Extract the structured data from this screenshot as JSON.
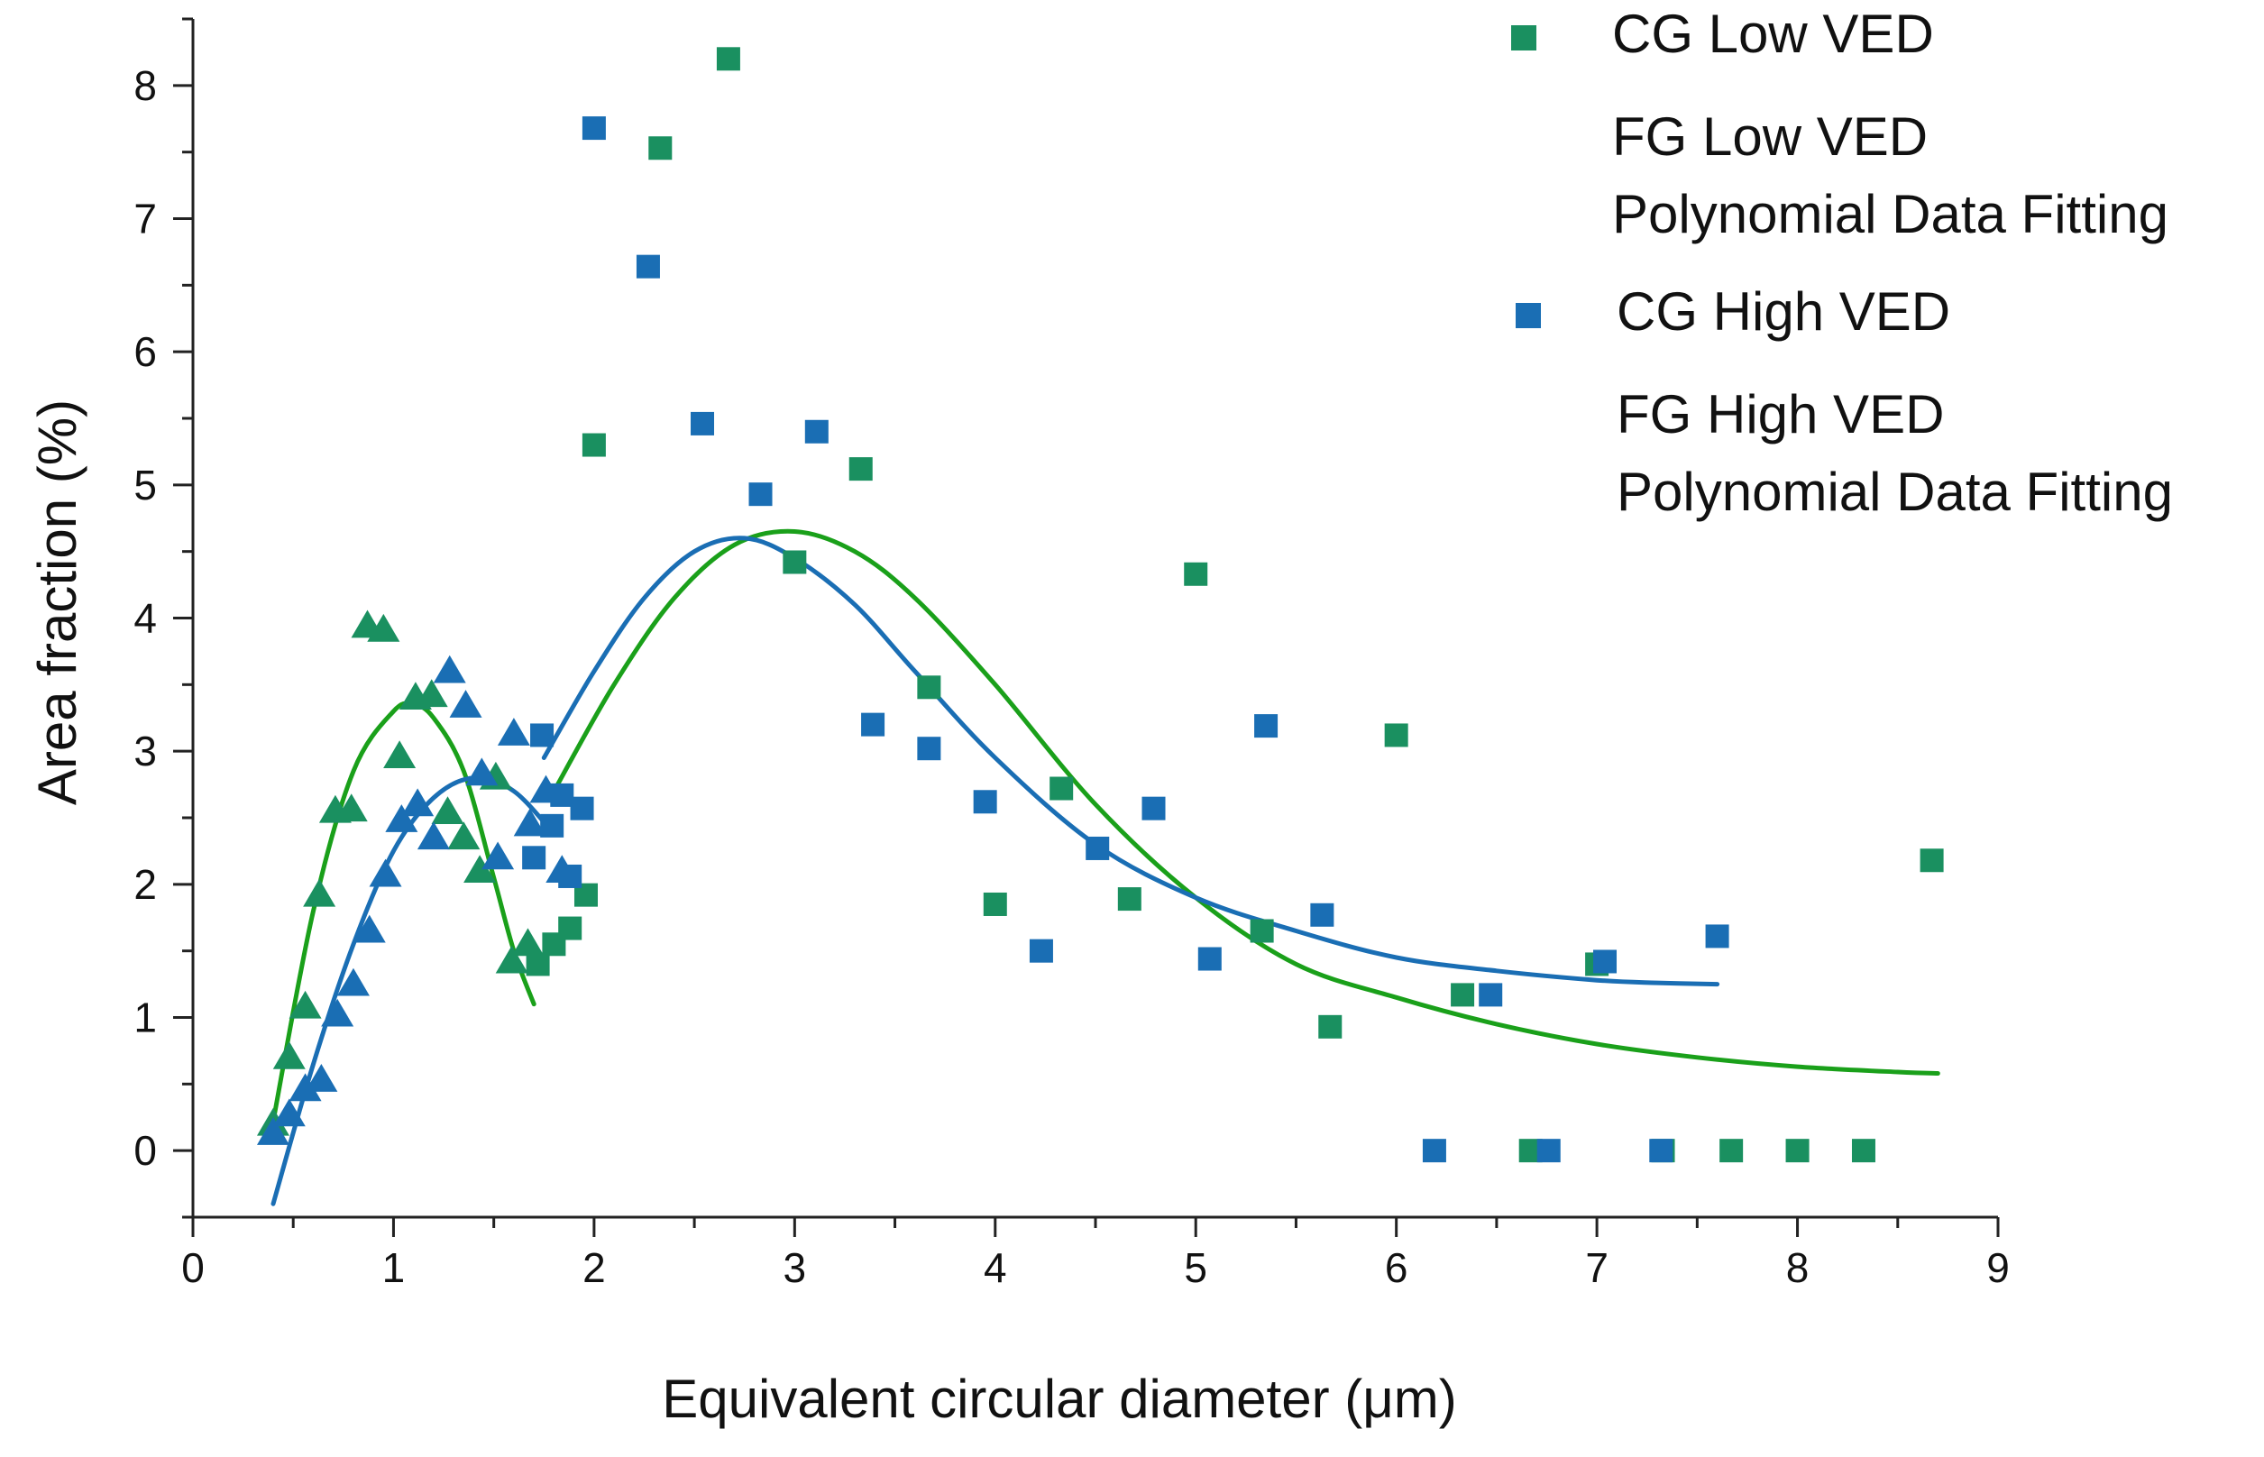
{
  "chart_data": {
    "type": "scatter",
    "xlabel": "Equivalent circular diameter (μm)",
    "ylabel": "Area fraction (%)",
    "xlim": [
      0,
      9
    ],
    "ylim": [
      -0.5,
      8.5
    ],
    "xticks": [
      "0",
      "1",
      "2",
      "3",
      "4",
      "5",
      "6",
      "7",
      "8",
      "9"
    ],
    "yticks": [
      "0",
      "1",
      "2",
      "3",
      "4",
      "5",
      "6",
      "7",
      "8"
    ],
    "legend": {
      "position": "top-right",
      "entries": [
        {
          "label": "CG Low VED",
          "marker": "square",
          "color": "#1a9060"
        },
        {
          "label": "FG Low VED",
          "marker": "none"
        },
        {
          "label": "Polynomial Data Fitting",
          "marker": "none"
        },
        {
          "label": "CG High VED",
          "marker": "square",
          "color": "#1a6eb4"
        },
        {
          "label": "FG High VED",
          "marker": "none"
        },
        {
          "label": "Polynomial Data Fitting",
          "marker": "none"
        }
      ]
    },
    "series": [
      {
        "name": "FG Low VED",
        "marker": "triangle",
        "color": "#1a9060",
        "x": [
          0.4,
          0.48,
          0.56,
          0.63,
          0.71,
          0.79,
          0.87,
          0.95,
          1.03,
          1.11,
          1.19,
          1.27,
          1.35,
          1.43,
          1.51,
          1.59,
          1.67
        ],
        "y": [
          0.2,
          0.7,
          1.08,
          1.92,
          2.55,
          2.56,
          3.94,
          3.91,
          2.96,
          3.4,
          3.42,
          2.54,
          2.35,
          2.1,
          2.8,
          1.42,
          1.55
        ]
      },
      {
        "name": "FG High VED",
        "marker": "triangle",
        "color": "#1a6eb4",
        "x": [
          0.4,
          0.48,
          0.56,
          0.64,
          0.72,
          0.8,
          0.88,
          0.96,
          1.04,
          1.12,
          1.2,
          1.28,
          1.36,
          1.44,
          1.52,
          1.6,
          1.68,
          1.76,
          1.84
        ],
        "y": [
          0.13,
          0.27,
          0.46,
          0.53,
          1.02,
          1.25,
          1.65,
          2.07,
          2.48,
          2.6,
          2.35,
          3.6,
          3.34,
          2.83,
          2.2,
          3.13,
          2.45,
          2.7,
          2.1
        ]
      },
      {
        "name": "CG Low VED",
        "marker": "square",
        "color": "#1a9060",
        "x": [
          1.72,
          1.8,
          1.88,
          1.96,
          2.0,
          2.33,
          2.67,
          3.0,
          3.33,
          3.67,
          4.0,
          4.33,
          4.67,
          5.0,
          5.33,
          5.67,
          6.0,
          6.33,
          6.67,
          7.0,
          7.33,
          7.67,
          8.0,
          8.33,
          8.67
        ],
        "y": [
          1.4,
          1.55,
          1.67,
          1.92,
          5.3,
          7.53,
          8.2,
          4.42,
          5.12,
          3.48,
          1.85,
          2.72,
          1.89,
          4.33,
          1.65,
          0.93,
          3.12,
          1.17,
          0.0,
          1.4,
          0.0,
          0.0,
          0.0,
          0.0,
          2.18
        ]
      },
      {
        "name": "CG High VED",
        "marker": "square",
        "color": "#1a6eb4",
        "x": [
          1.7,
          1.74,
          1.79,
          1.84,
          1.88,
          1.94,
          2.0,
          2.27,
          2.54,
          2.83,
          3.11,
          3.39,
          3.67,
          3.95,
          4.23,
          4.51,
          4.79,
          5.07,
          5.35,
          5.63,
          6.19,
          6.47,
          6.76,
          7.04,
          7.32,
          7.6
        ],
        "y": [
          2.2,
          3.12,
          2.44,
          2.67,
          2.06,
          2.57,
          7.68,
          6.64,
          5.46,
          4.93,
          5.4,
          3.2,
          3.02,
          2.62,
          1.5,
          2.27,
          2.57,
          1.44,
          3.19,
          1.77,
          0.0,
          1.17,
          0.0,
          1.42,
          0.0,
          1.61
        ]
      },
      {
        "name": "Polynomial Data Fitting (FG Low VED)",
        "type": "line",
        "color": "#1aa01a",
        "x": [
          0.4,
          0.6,
          0.8,
          1.0,
          1.1,
          1.2,
          1.35,
          1.5,
          1.6,
          1.7
        ],
        "y": [
          0.22,
          1.8,
          2.85,
          3.3,
          3.35,
          3.25,
          2.85,
          2.05,
          1.5,
          1.1
        ]
      },
      {
        "name": "Polynomial Data Fitting (FG High VED)",
        "type": "line",
        "color": "#1a6eb4",
        "x": [
          0.4,
          0.6,
          0.8,
          1.0,
          1.2,
          1.4,
          1.6,
          1.8
        ],
        "y": [
          -0.4,
          0.65,
          1.55,
          2.25,
          2.65,
          2.8,
          2.7,
          2.38
        ]
      },
      {
        "name": "Polynomial Data Fitting (CG Low VED)",
        "type": "line",
        "color": "#1aa01a",
        "x": [
          1.8,
          2.1,
          2.4,
          2.7,
          3.0,
          3.3,
          3.6,
          4.0,
          4.5,
          5.0,
          5.5,
          6.0,
          6.5,
          7.0,
          7.5,
          8.0,
          8.5,
          8.7
        ],
        "y": [
          2.7,
          3.5,
          4.15,
          4.55,
          4.65,
          4.5,
          4.15,
          3.5,
          2.6,
          1.9,
          1.4,
          1.15,
          0.95,
          0.8,
          0.7,
          0.63,
          0.59,
          0.58
        ]
      },
      {
        "name": "Polynomial Data Fitting (CG High VED)",
        "type": "line",
        "color": "#1a6eb4",
        "x": [
          1.75,
          2.0,
          2.25,
          2.5,
          2.75,
          3.0,
          3.3,
          3.6,
          4.0,
          4.5,
          5.0,
          5.5,
          6.0,
          6.5,
          7.0,
          7.3,
          7.6
        ],
        "y": [
          2.95,
          3.6,
          4.15,
          4.5,
          4.6,
          4.45,
          4.1,
          3.6,
          2.95,
          2.3,
          1.9,
          1.65,
          1.45,
          1.35,
          1.28,
          1.26,
          1.25
        ]
      }
    ]
  },
  "colors": {
    "green_marker": "#1a9060",
    "blue": "#1a6eb4",
    "green_line": "#1aa01a",
    "axis": "#222222"
  }
}
